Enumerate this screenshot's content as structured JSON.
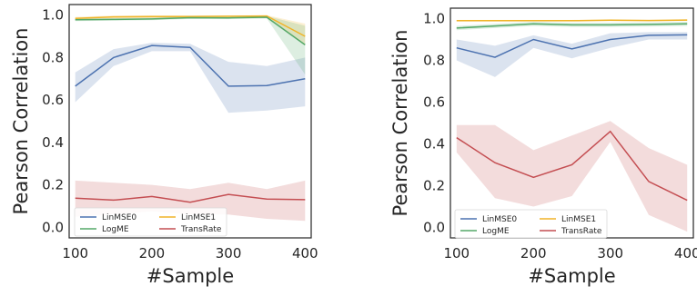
{
  "chart_data": [
    {
      "type": "line",
      "xlabel": "#Sample",
      "ylabel": "Pearson Correlation",
      "x": [
        100,
        150,
        200,
        250,
        300,
        350,
        400
      ],
      "xlim": [
        92,
        408
      ],
      "ylim": [
        -0.05,
        1.05
      ],
      "xticks": [
        100,
        200,
        300,
        400
      ],
      "yticks": [
        0.0,
        0.2,
        0.4,
        0.6,
        0.8,
        1.0
      ],
      "ytick_labels": [
        "0.0",
        "0.2",
        "0.4",
        "0.6",
        "0.8",
        "1.0"
      ],
      "grid": false,
      "legend": "bottom-left",
      "series": [
        {
          "name": "LinMSE0",
          "color": "#4c72b0",
          "values": [
            0.665,
            0.8,
            0.857,
            0.848,
            0.665,
            0.668,
            0.7
          ],
          "lower": [
            0.59,
            0.76,
            0.83,
            0.83,
            0.54,
            0.55,
            0.57
          ],
          "upper": [
            0.73,
            0.84,
            0.87,
            0.865,
            0.78,
            0.76,
            0.8
          ]
        },
        {
          "name": "LinMSE1",
          "color": "#f0b429",
          "values": [
            0.985,
            0.992,
            0.993,
            0.993,
            0.995,
            0.996,
            0.9
          ],
          "lower": [
            0.978,
            0.985,
            0.986,
            0.986,
            0.988,
            0.989,
            0.86
          ],
          "upper": [
            0.992,
            0.998,
            0.999,
            0.999,
            0.999,
            1.0,
            0.96
          ]
        },
        {
          "name": "LogME",
          "color": "#55a868",
          "values": [
            0.978,
            0.98,
            0.982,
            0.988,
            0.987,
            0.99,
            0.86
          ],
          "lower": [
            0.972,
            0.974,
            0.976,
            0.982,
            0.981,
            0.984,
            0.72
          ],
          "upper": [
            0.984,
            0.986,
            0.988,
            0.994,
            0.993,
            0.996,
            0.95
          ]
        },
        {
          "name": "TransRate",
          "color": "#c44e52",
          "values": [
            0.137,
            0.128,
            0.145,
            0.118,
            0.155,
            0.133,
            0.13
          ],
          "lower": [
            0.05,
            0.06,
            0.075,
            0.06,
            0.06,
            0.04,
            0.03
          ],
          "upper": [
            0.22,
            0.21,
            0.2,
            0.18,
            0.21,
            0.18,
            0.22
          ]
        }
      ]
    },
    {
      "type": "line",
      "xlabel": "#Sample",
      "ylabel": "Pearson Correlation",
      "x": [
        100,
        150,
        200,
        250,
        300,
        350,
        400
      ],
      "xlim": [
        92,
        408
      ],
      "ylim": [
        -0.05,
        1.05
      ],
      "xticks": [
        100,
        200,
        300,
        400
      ],
      "yticks": [
        0.0,
        0.2,
        0.4,
        0.6,
        0.8,
        1.0
      ],
      "ytick_labels": [
        "0.0",
        "0.2",
        "0.4",
        "0.6",
        "0.8",
        "1.0"
      ],
      "grid": false,
      "legend": "bottom-left",
      "series": [
        {
          "name": "LinMSE0",
          "color": "#4c72b0",
          "values": [
            0.86,
            0.815,
            0.9,
            0.855,
            0.9,
            0.92,
            0.922
          ],
          "lower": [
            0.8,
            0.72,
            0.86,
            0.81,
            0.86,
            0.9,
            0.9
          ],
          "upper": [
            0.9,
            0.87,
            0.92,
            0.88,
            0.93,
            0.935,
            0.935
          ]
        },
        {
          "name": "LinMSE1",
          "color": "#f0b429",
          "values": [
            0.99,
            0.99,
            0.99,
            0.99,
            0.992,
            0.991,
            0.993
          ],
          "lower": [
            0.986,
            0.986,
            0.986,
            0.986,
            0.988,
            0.987,
            0.989
          ],
          "upper": [
            0.994,
            0.994,
            0.994,
            0.994,
            0.996,
            0.995,
            0.997
          ]
        },
        {
          "name": "LogME",
          "color": "#55a868",
          "values": [
            0.955,
            0.965,
            0.975,
            0.97,
            0.97,
            0.972,
            0.975
          ],
          "lower": [
            0.945,
            0.955,
            0.965,
            0.96,
            0.96,
            0.962,
            0.965
          ],
          "upper": [
            0.965,
            0.975,
            0.985,
            0.98,
            0.98,
            0.982,
            0.985
          ]
        },
        {
          "name": "TransRate",
          "color": "#c44e52",
          "values": [
            0.43,
            0.31,
            0.24,
            0.3,
            0.46,
            0.22,
            0.13
          ],
          "lower": [
            0.36,
            0.14,
            0.1,
            0.15,
            0.41,
            0.06,
            -0.02
          ],
          "upper": [
            0.49,
            0.49,
            0.37,
            0.44,
            0.51,
            0.38,
            0.3
          ]
        }
      ]
    }
  ]
}
